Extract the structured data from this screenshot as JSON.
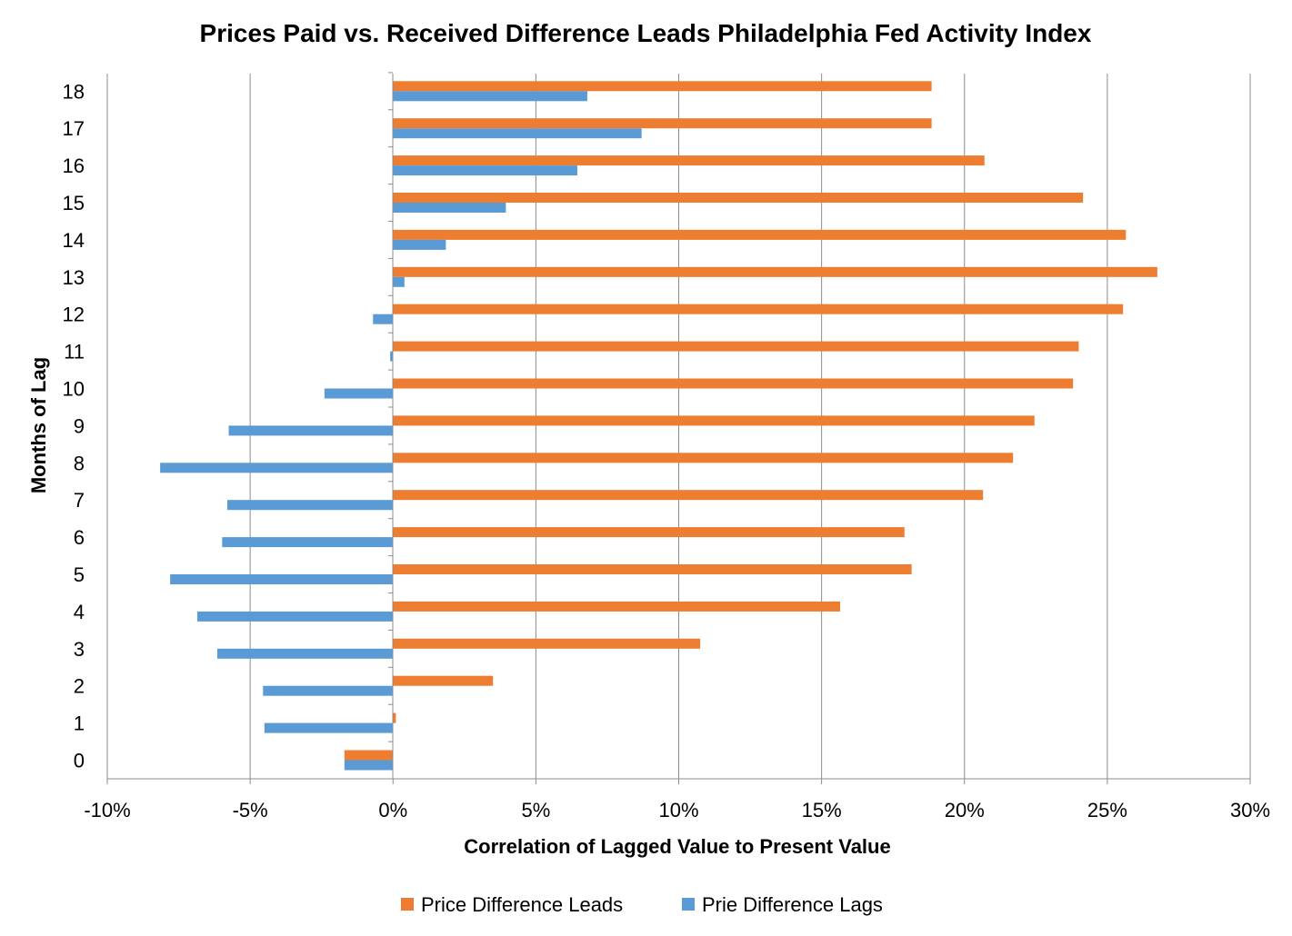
{
  "chart_data": {
    "type": "bar",
    "orientation": "horizontal",
    "title": "Prices Paid vs. Received Difference Leads Philadelphia Fed Activity Index",
    "xlabel": "Correlation of Lagged Value to Present Value",
    "ylabel": "Months of Lag",
    "categories": [
      "0",
      "1",
      "2",
      "3",
      "4",
      "5",
      "6",
      "7",
      "8",
      "9",
      "10",
      "11",
      "12",
      "13",
      "14",
      "15",
      "16",
      "17",
      "18"
    ],
    "x_ticks": [
      "-10%",
      "-5%",
      "0%",
      "5%",
      "10%",
      "15%",
      "20%",
      "25%",
      "30%"
    ],
    "xlim": [
      -0.1,
      0.3
    ],
    "x_grid": true,
    "legend_position": "bottom",
    "series": [
      {
        "name": "Price Difference Leads",
        "color": "#ED7D31",
        "values": [
          -0.017,
          0.001,
          0.035,
          0.1075,
          0.1565,
          0.1815,
          0.179,
          0.2065,
          0.217,
          0.2245,
          0.238,
          0.24,
          0.2555,
          0.2675,
          0.2565,
          0.2415,
          0.207,
          0.1885,
          0.1885
        ]
      },
      {
        "name": "Prie Difference Lags",
        "color": "#5B9BD5",
        "values": [
          -0.017,
          -0.045,
          -0.0455,
          -0.0615,
          -0.0685,
          -0.078,
          -0.0598,
          -0.058,
          -0.0815,
          -0.0575,
          -0.024,
          -0.001,
          -0.007,
          0.004,
          0.0185,
          0.0395,
          0.0645,
          0.087,
          0.068
        ]
      }
    ]
  }
}
